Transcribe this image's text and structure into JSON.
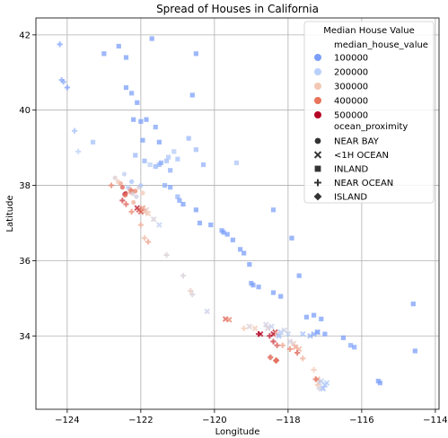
{
  "chart_data": {
    "type": "scatter",
    "title": "Spread of Houses in California",
    "xlabel": "Longitude",
    "ylabel": "Latitude",
    "xlim": [
      -124.85,
      -113.9
    ],
    "ylim": [
      32.05,
      42.45
    ],
    "x_ticks": [
      -124,
      -122,
      -120,
      -118,
      -116,
      -114
    ],
    "y_ticks": [
      34,
      36,
      38,
      40,
      42
    ],
    "grid": true,
    "legend": {
      "position": "top-right",
      "title": "Median House Value",
      "hue_title": "median_house_value",
      "hue_entries": [
        {
          "label": "100000",
          "value": 100000,
          "color": "#7b9ff9"
        },
        {
          "label": "200000",
          "value": 200000,
          "color": "#b9d0f9"
        },
        {
          "label": "300000",
          "value": 300000,
          "color": "#f2c8b4"
        },
        {
          "label": "400000",
          "value": 400000,
          "color": "#e7745b"
        },
        {
          "label": "500000",
          "value": 500000,
          "color": "#b40426"
        }
      ],
      "style_title": "ocean_proximity",
      "style_entries": [
        {
          "label": "NEAR BAY",
          "marker": "circle"
        },
        {
          "label": "<1H OCEAN",
          "marker": "x"
        },
        {
          "label": "INLAND",
          "marker": "square"
        },
        {
          "label": "NEAR OCEAN",
          "marker": "plus"
        },
        {
          "label": "ISLAND",
          "marker": "diamond"
        }
      ]
    },
    "series": [
      {
        "category": "NEAR BAY",
        "marker": "circle",
        "points": [
          [
            -122.25,
            37.85,
            420000
          ],
          [
            -122.27,
            37.82,
            360000
          ],
          [
            -122.22,
            37.78,
            250000
          ],
          [
            -122.3,
            37.9,
            380000
          ],
          [
            -122.12,
            37.7,
            240000
          ],
          [
            -122.05,
            37.95,
            260000
          ],
          [
            -122.41,
            37.79,
            450000
          ],
          [
            -122.44,
            37.76,
            480000
          ],
          [
            -122.42,
            37.74,
            390000
          ],
          [
            -122.2,
            37.55,
            330000
          ],
          [
            -122.55,
            38.05,
            350000
          ],
          [
            -122.5,
            37.95,
            420000
          ],
          [
            -122.62,
            38.1,
            300000
          ],
          [
            -122.35,
            37.95,
            200000
          ],
          [
            -122.0,
            38.0,
            180000
          ],
          [
            -122.45,
            38.3,
            210000
          ],
          [
            -122.25,
            38.1,
            170000
          ],
          [
            -122.7,
            38.2,
            260000
          ],
          [
            -122.15,
            37.85,
            380000
          ],
          [
            -121.95,
            37.8,
            300000
          ]
        ]
      },
      {
        "category": "<1H OCEAN",
        "marker": "x",
        "points": [
          [
            -122.1,
            37.4,
            480000
          ],
          [
            -122.05,
            37.35,
            440000
          ],
          [
            -121.9,
            37.3,
            330000
          ],
          [
            -121.85,
            37.35,
            280000
          ],
          [
            -121.8,
            37.25,
            300000
          ],
          [
            -122.0,
            37.3,
            420000
          ],
          [
            -121.95,
            37.4,
            360000
          ],
          [
            -121.65,
            37.1,
            250000
          ],
          [
            -121.5,
            36.95,
            210000
          ],
          [
            -118.4,
            34.05,
            500000
          ],
          [
            -118.35,
            34.1,
            460000
          ],
          [
            -118.3,
            34.05,
            300000
          ],
          [
            -118.25,
            34.0,
            160000
          ],
          [
            -118.2,
            34.1,
            190000
          ],
          [
            -118.1,
            34.15,
            230000
          ],
          [
            -118.0,
            34.05,
            210000
          ],
          [
            -117.95,
            33.85,
            240000
          ],
          [
            -117.85,
            33.8,
            280000
          ],
          [
            -117.8,
            33.7,
            350000
          ],
          [
            -117.7,
            33.65,
            330000
          ],
          [
            -117.6,
            34.05,
            170000
          ],
          [
            -117.4,
            34.0,
            140000
          ],
          [
            -117.3,
            34.05,
            120000
          ],
          [
            -117.2,
            34.1,
            130000
          ],
          [
            -118.55,
            34.2,
            260000
          ],
          [
            -118.45,
            34.25,
            220000
          ],
          [
            -118.6,
            34.3,
            240000
          ],
          [
            -118.9,
            34.2,
            300000
          ],
          [
            -119.05,
            34.25,
            260000
          ],
          [
            -118.75,
            34.05,
            490000
          ],
          [
            -119.7,
            34.45,
            420000
          ],
          [
            -119.6,
            34.43,
            380000
          ],
          [
            -120.2,
            34.65,
            230000
          ],
          [
            -117.15,
            32.75,
            230000
          ],
          [
            -117.1,
            32.8,
            210000
          ],
          [
            -117.0,
            32.7,
            170000
          ],
          [
            -117.05,
            32.6,
            150000
          ],
          [
            -116.95,
            32.75,
            190000
          ],
          [
            -117.2,
            32.85,
            330000
          ]
        ]
      },
      {
        "category": "INLAND",
        "marker": "square",
        "points": [
          [
            -121.5,
            38.55,
            140000
          ],
          [
            -121.45,
            38.6,
            120000
          ],
          [
            -121.3,
            38.65,
            160000
          ],
          [
            -121.25,
            38.75,
            180000
          ],
          [
            -121.1,
            38.9,
            190000
          ],
          [
            -121.6,
            38.5,
            150000
          ],
          [
            -121.75,
            38.55,
            200000
          ],
          [
            -121.2,
            38.4,
            130000
          ],
          [
            -121.0,
            38.7,
            170000
          ],
          [
            -122.0,
            39.7,
            90000
          ],
          [
            -121.85,
            39.75,
            100000
          ],
          [
            -121.6,
            39.55,
            110000
          ],
          [
            -122.25,
            40.45,
            110000
          ],
          [
            -122.4,
            40.6,
            100000
          ],
          [
            -122.1,
            40.2,
            90000
          ],
          [
            -121.95,
            39.2,
            90000
          ],
          [
            -122.2,
            39.75,
            80000
          ],
          [
            -121.5,
            39.15,
            95000
          ],
          [
            -120.7,
            39.25,
            150000
          ],
          [
            -120.5,
            38.95,
            160000
          ],
          [
            -120.3,
            38.55,
            140000
          ],
          [
            -121.0,
            37.7,
            140000
          ],
          [
            -121.2,
            37.95,
            110000
          ],
          [
            -121.35,
            38.0,
            130000
          ],
          [
            -120.95,
            37.6,
            110000
          ],
          [
            -120.85,
            37.5,
            100000
          ],
          [
            -120.5,
            37.35,
            90000
          ],
          [
            -120.4,
            37.0,
            85000
          ],
          [
            -120.1,
            36.95,
            80000
          ],
          [
            -119.8,
            36.8,
            85000
          ],
          [
            -119.75,
            36.75,
            80000
          ],
          [
            -119.65,
            36.7,
            75000
          ],
          [
            -119.5,
            36.55,
            70000
          ],
          [
            -119.3,
            36.3,
            70000
          ],
          [
            -119.2,
            36.2,
            75000
          ],
          [
            -119.05,
            35.9,
            65000
          ],
          [
            -119.0,
            35.4,
            80000
          ],
          [
            -118.95,
            35.35,
            85000
          ],
          [
            -118.8,
            35.3,
            75000
          ],
          [
            -117.5,
            34.5,
            100000
          ],
          [
            -117.3,
            34.55,
            95000
          ],
          [
            -117.1,
            34.45,
            90000
          ],
          [
            -117.2,
            34.1,
            110000
          ],
          [
            -117.0,
            34.05,
            100000
          ],
          [
            -116.5,
            33.95,
            90000
          ],
          [
            -116.3,
            33.75,
            120000
          ],
          [
            -116.2,
            33.7,
            110000
          ],
          [
            -115.55,
            32.8,
            80000
          ],
          [
            -115.5,
            32.75,
            75000
          ],
          [
            -114.6,
            34.85,
            70000
          ],
          [
            -114.55,
            33.6,
            65000
          ],
          [
            -123.3,
            39.15,
            170000
          ],
          [
            -123.0,
            41.5,
            90000
          ],
          [
            -122.6,
            41.7,
            85000
          ],
          [
            -122.4,
            41.4,
            80000
          ],
          [
            -121.7,
            41.9,
            75000
          ],
          [
            -120.5,
            41.5,
            70000
          ],
          [
            -120.6,
            40.4,
            75000
          ],
          [
            -122.15,
            38.8,
            150000
          ],
          [
            -121.9,
            38.65,
            140000
          ],
          [
            -118.4,
            35.15,
            100000
          ],
          [
            -118.2,
            35.05,
            95000
          ],
          [
            -117.7,
            35.6,
            70000
          ],
          [
            -117.9,
            36.6,
            80000
          ],
          [
            -118.4,
            37.35,
            110000
          ],
          [
            -119.4,
            38.6,
            180000
          ]
        ]
      },
      {
        "category": "NEAR OCEAN",
        "marker": "plus",
        "points": [
          [
            -124.15,
            40.8,
            110000
          ],
          [
            -124.1,
            40.75,
            120000
          ],
          [
            -124.2,
            41.75,
            90000
          ],
          [
            -124.0,
            40.6,
            100000
          ],
          [
            -123.8,
            39.45,
            160000
          ],
          [
            -123.7,
            38.9,
            200000
          ],
          [
            -122.8,
            38.0,
            380000
          ],
          [
            -122.5,
            37.6,
            450000
          ],
          [
            -122.4,
            37.5,
            420000
          ],
          [
            -122.25,
            37.3,
            380000
          ],
          [
            -122.0,
            36.95,
            330000
          ],
          [
            -121.9,
            36.6,
            320000
          ],
          [
            -121.8,
            36.5,
            350000
          ],
          [
            -121.3,
            36.15,
            260000
          ],
          [
            -120.85,
            35.6,
            250000
          ],
          [
            -120.65,
            35.2,
            280000
          ],
          [
            -120.6,
            35.1,
            250000
          ],
          [
            -119.2,
            34.2,
            300000
          ],
          [
            -118.8,
            34.05,
            500000
          ],
          [
            -118.5,
            34.0,
            480000
          ],
          [
            -118.4,
            33.85,
            460000
          ],
          [
            -118.3,
            33.75,
            430000
          ],
          [
            -118.15,
            33.75,
            350000
          ],
          [
            -117.95,
            33.65,
            380000
          ],
          [
            -117.75,
            33.55,
            420000
          ],
          [
            -117.6,
            33.4,
            330000
          ],
          [
            -117.3,
            33.1,
            300000
          ],
          [
            -117.25,
            32.85,
            410000
          ],
          [
            -117.2,
            32.7,
            300000
          ],
          [
            -117.15,
            32.6,
            240000
          ]
        ]
      },
      {
        "category": "ISLAND",
        "marker": "diamond",
        "points": [
          [
            -118.32,
            33.35,
            450000
          ],
          [
            -118.33,
            33.34,
            400000
          ],
          [
            -118.48,
            33.43,
            420000
          ]
        ]
      }
    ]
  }
}
